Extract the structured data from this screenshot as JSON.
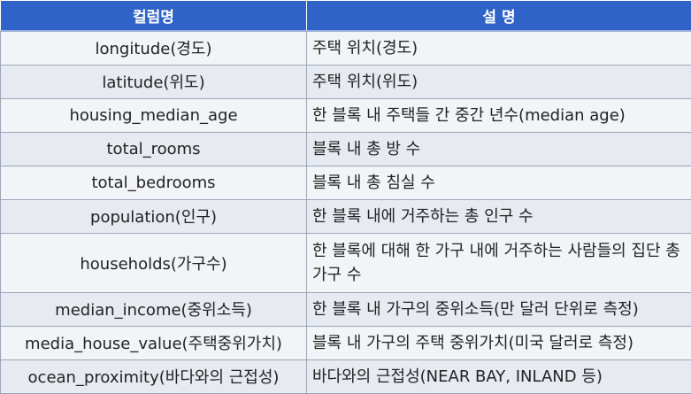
{
  "table": {
    "headers": [
      "컬럼명",
      "설 명"
    ],
    "rows": [
      {
        "name": "longitude(경도)",
        "desc": "주택 위치(경도)"
      },
      {
        "name": "latitude(위도)",
        "desc": "주택 위치(위도)"
      },
      {
        "name": "housing_median_age",
        "desc": "한 블록 내 주택들 간 중간 년수(median age)"
      },
      {
        "name": "total_rooms",
        "desc": "블록 내 총 방 수"
      },
      {
        "name": "total_bedrooms",
        "desc": "블록 내 총 침실 수"
      },
      {
        "name": "population(인구)",
        "desc": "한 블록 내에 거주하는 총 인구 수"
      },
      {
        "name": "households(가구수)",
        "desc": "한 블록에 대해 한 가구 내에 거주하는 사람들의 집단 총 가구 수"
      },
      {
        "name": "median_income(중위소득)",
        "desc": "한 블록 내 가구의 중위소득(만 달러 단위로 측정)"
      },
      {
        "name": "media_house_value(주택중위가치)",
        "desc": "블록 내 가구의 주택 중위가치(미국 달러로 측정)"
      },
      {
        "name": "ocean_proximity(바다와의 근접성)",
        "desc": "바다와의 근접성(NEAR BAY, INLAND 등)"
      }
    ]
  }
}
